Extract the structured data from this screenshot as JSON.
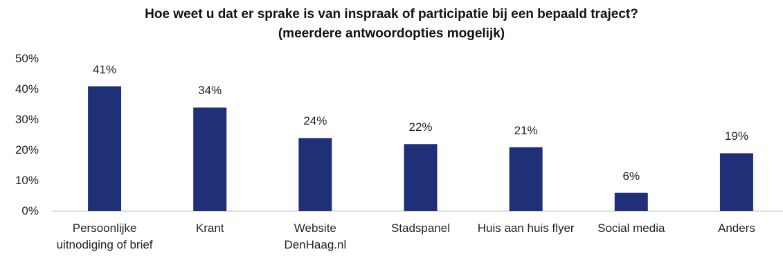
{
  "chart_data": {
    "type": "bar",
    "title": "Hoe weet u dat er sprake is van inspraak of participatie bij een bepaald traject?",
    "subtitle": "(meerdere antwoordopties mogelijk)",
    "categories": [
      "Persoonlijke uitnodiging of brief",
      "Krant",
      "Website DenHaag.nl",
      "Stadspanel",
      "Huis aan huis flyer",
      "Social media",
      "Anders"
    ],
    "values": [
      41,
      34,
      24,
      22,
      21,
      6,
      19
    ],
    "value_labels": [
      "41%",
      "34%",
      "24%",
      "22%",
      "21%",
      "6%",
      "19%"
    ],
    "color": "#1f3079",
    "ylim": [
      0,
      50
    ],
    "yticks": [
      {
        "value": 0,
        "label": "0%"
      },
      {
        "value": 10,
        "label": "10%"
      },
      {
        "value": 20,
        "label": "20%"
      },
      {
        "value": 30,
        "label": "30%"
      },
      {
        "value": 40,
        "label": "40%"
      },
      {
        "value": 50,
        "label": "50%"
      }
    ],
    "grid": false
  }
}
